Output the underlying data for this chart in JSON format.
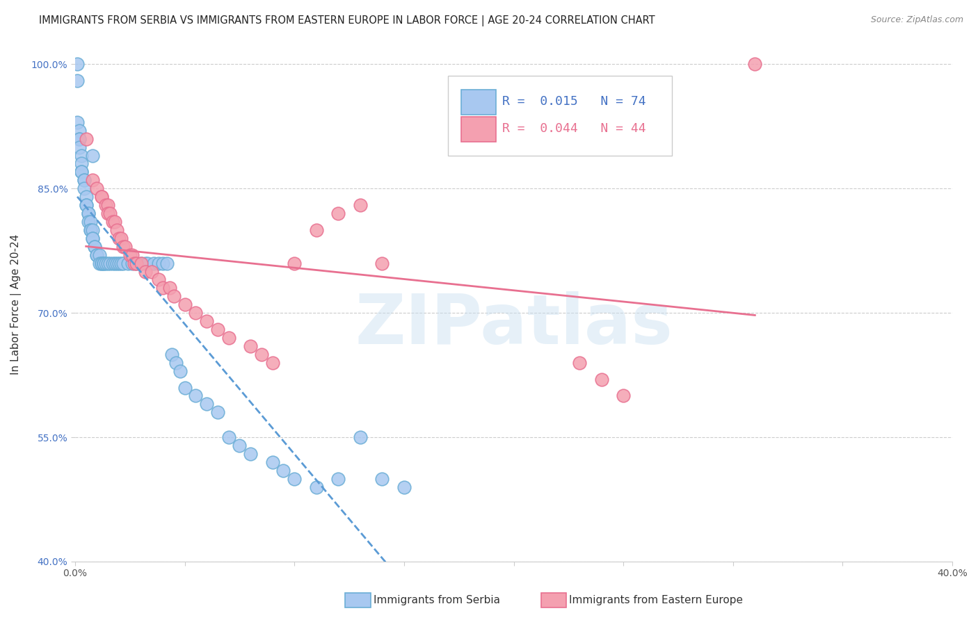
{
  "title": "IMMIGRANTS FROM SERBIA VS IMMIGRANTS FROM EASTERN EUROPE IN LABOR FORCE | AGE 20-24 CORRELATION CHART",
  "source": "Source: ZipAtlas.com",
  "ylabel": "In Labor Force | Age 20-24",
  "xlim": [
    0.0,
    0.4
  ],
  "ylim": [
    0.4,
    1.02
  ],
  "xticks": [
    0.0,
    0.05,
    0.1,
    0.15,
    0.2,
    0.25,
    0.3,
    0.35,
    0.4
  ],
  "xticklabels": [
    "0.0%",
    "",
    "",
    "",
    "",
    "",
    "",
    "",
    "40.0%"
  ],
  "yticks": [
    0.4,
    0.55,
    0.7,
    0.85,
    1.0
  ],
  "yticklabels": [
    "40.0%",
    "55.0%",
    "70.0%",
    "85.0%",
    "100.0%"
  ],
  "serbia_color": "#a8c8f0",
  "serbia_edge_color": "#6baed6",
  "eastern_color": "#f4a0b0",
  "eastern_edge_color": "#e87090",
  "serbia_R": 0.015,
  "serbia_N": 74,
  "eastern_R": 0.044,
  "eastern_N": 44,
  "serbia_line_color": "#5b9bd5",
  "eastern_line_color": "#e87090",
  "watermark": "ZIPatlas",
  "serbia_x": [
    0.001,
    0.001,
    0.001,
    0.002,
    0.002,
    0.002,
    0.002,
    0.003,
    0.003,
    0.003,
    0.003,
    0.004,
    0.004,
    0.004,
    0.005,
    0.005,
    0.005,
    0.006,
    0.006,
    0.006,
    0.007,
    0.007,
    0.007,
    0.008,
    0.008,
    0.008,
    0.009,
    0.009,
    0.01,
    0.01,
    0.011,
    0.011,
    0.012,
    0.012,
    0.013,
    0.013,
    0.014,
    0.015,
    0.016,
    0.017,
    0.018,
    0.019,
    0.02,
    0.021,
    0.022,
    0.024,
    0.026,
    0.028,
    0.03,
    0.032,
    0.033,
    0.036,
    0.038,
    0.04,
    0.042,
    0.044,
    0.046,
    0.048,
    0.05,
    0.055,
    0.06,
    0.065,
    0.07,
    0.075,
    0.08,
    0.09,
    0.095,
    0.1,
    0.11,
    0.12,
    0.13,
    0.14,
    0.15,
    0.008
  ],
  "serbia_y": [
    1.0,
    0.98,
    0.93,
    0.92,
    0.91,
    0.91,
    0.9,
    0.89,
    0.88,
    0.87,
    0.87,
    0.86,
    0.86,
    0.85,
    0.84,
    0.83,
    0.83,
    0.82,
    0.82,
    0.81,
    0.81,
    0.8,
    0.8,
    0.8,
    0.79,
    0.79,
    0.78,
    0.78,
    0.77,
    0.77,
    0.77,
    0.76,
    0.76,
    0.76,
    0.76,
    0.76,
    0.76,
    0.76,
    0.76,
    0.76,
    0.76,
    0.76,
    0.76,
    0.76,
    0.76,
    0.76,
    0.76,
    0.76,
    0.76,
    0.76,
    0.76,
    0.76,
    0.76,
    0.76,
    0.76,
    0.65,
    0.64,
    0.63,
    0.61,
    0.6,
    0.59,
    0.58,
    0.55,
    0.54,
    0.53,
    0.52,
    0.51,
    0.5,
    0.49,
    0.5,
    0.55,
    0.5,
    0.49,
    0.89
  ],
  "eastern_x": [
    0.005,
    0.008,
    0.01,
    0.012,
    0.012,
    0.014,
    0.015,
    0.015,
    0.016,
    0.017,
    0.018,
    0.019,
    0.02,
    0.021,
    0.022,
    0.023,
    0.025,
    0.026,
    0.027,
    0.028,
    0.03,
    0.032,
    0.035,
    0.038,
    0.04,
    0.043,
    0.045,
    0.05,
    0.055,
    0.06,
    0.065,
    0.07,
    0.08,
    0.085,
    0.09,
    0.1,
    0.11,
    0.12,
    0.13,
    0.14,
    0.23,
    0.24,
    0.25,
    0.31
  ],
  "eastern_y": [
    0.91,
    0.86,
    0.85,
    0.84,
    0.84,
    0.83,
    0.83,
    0.82,
    0.82,
    0.81,
    0.81,
    0.8,
    0.79,
    0.79,
    0.78,
    0.78,
    0.77,
    0.77,
    0.76,
    0.76,
    0.76,
    0.75,
    0.75,
    0.74,
    0.73,
    0.73,
    0.72,
    0.71,
    0.7,
    0.69,
    0.68,
    0.67,
    0.66,
    0.65,
    0.64,
    0.76,
    0.8,
    0.82,
    0.83,
    0.76,
    0.64,
    0.62,
    0.6,
    1.0
  ]
}
